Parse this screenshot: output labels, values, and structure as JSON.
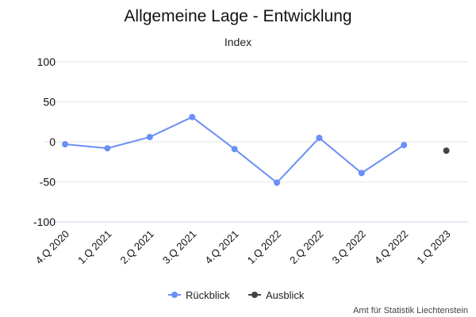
{
  "chart_data": {
    "type": "line",
    "title": "Allgemeine Lage - Entwicklung",
    "ylabel": "Index",
    "categories": [
      "4.Q 2020",
      "1.Q 2021",
      "2.Q 2021",
      "3.Q 2021",
      "4.Q 2021",
      "1.Q 2022",
      "2.Q 2022",
      "3.Q 2022",
      "4.Q 2022",
      "1.Q 2023"
    ],
    "ylim": [
      -100,
      100
    ],
    "yticks": [
      100,
      50,
      0,
      -50,
      -100
    ],
    "grid": true,
    "legend_position": "bottom",
    "series": [
      {
        "name": "Rückblick",
        "color": "#6a8ff7",
        "values": [
          -3,
          -8,
          6,
          31,
          -9,
          -51,
          5,
          -39,
          -4,
          null
        ]
      },
      {
        "name": "Ausblick",
        "color": "#434348",
        "values": [
          null,
          null,
          null,
          null,
          null,
          null,
          null,
          null,
          null,
          -11
        ]
      }
    ]
  },
  "credit": "Amt für Statistik Liechtenstein"
}
